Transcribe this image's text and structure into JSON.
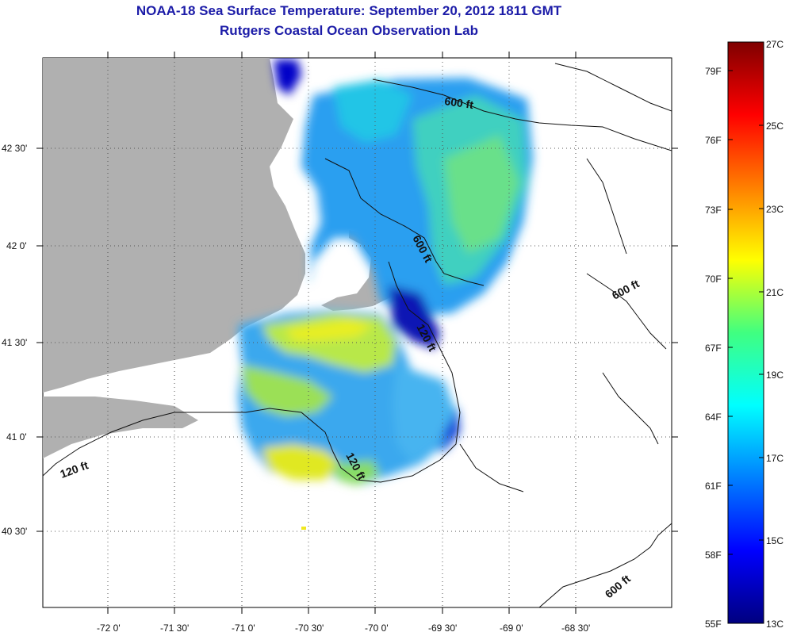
{
  "title": "NOAA-18 Sea Surface Temperature:  September 20, 2012 1811 GMT",
  "subtitle": "Rutgers Coastal Ocean Observation Lab",
  "lon_labels": [
    "-72 0'",
    "-71 30'",
    "-71 0'",
    "-70 30'",
    "-70 0'",
    "-69 30'",
    "-69 0'",
    "-68 30'"
  ],
  "lat_labels": [
    "42 30'",
    "42 0'",
    "41 30'",
    "41 0'",
    "40 30'"
  ],
  "contours": {
    "c600_north": "600 ft",
    "c600_mid": "600 ft",
    "c600_east": "600 ft",
    "c600_south": "600 ft",
    "c120_east": "120 ft",
    "c120_mid": "120 ft",
    "c120_west": "120 ft"
  },
  "colorbar": {
    "celsius": [
      "27C",
      "25C",
      "23C",
      "21C",
      "19C",
      "17C",
      "15C",
      "13C"
    ],
    "fahrenheit": [
      "79F",
      "76F",
      "73F",
      "70F",
      "67F",
      "64F",
      "61F",
      "58F",
      "55F"
    ],
    "min_c": 13,
    "max_c": 27
  },
  "colors": {
    "title": "#1c1ca8",
    "land": "#b0b0b0",
    "water_nodata": "#ffffff"
  }
}
